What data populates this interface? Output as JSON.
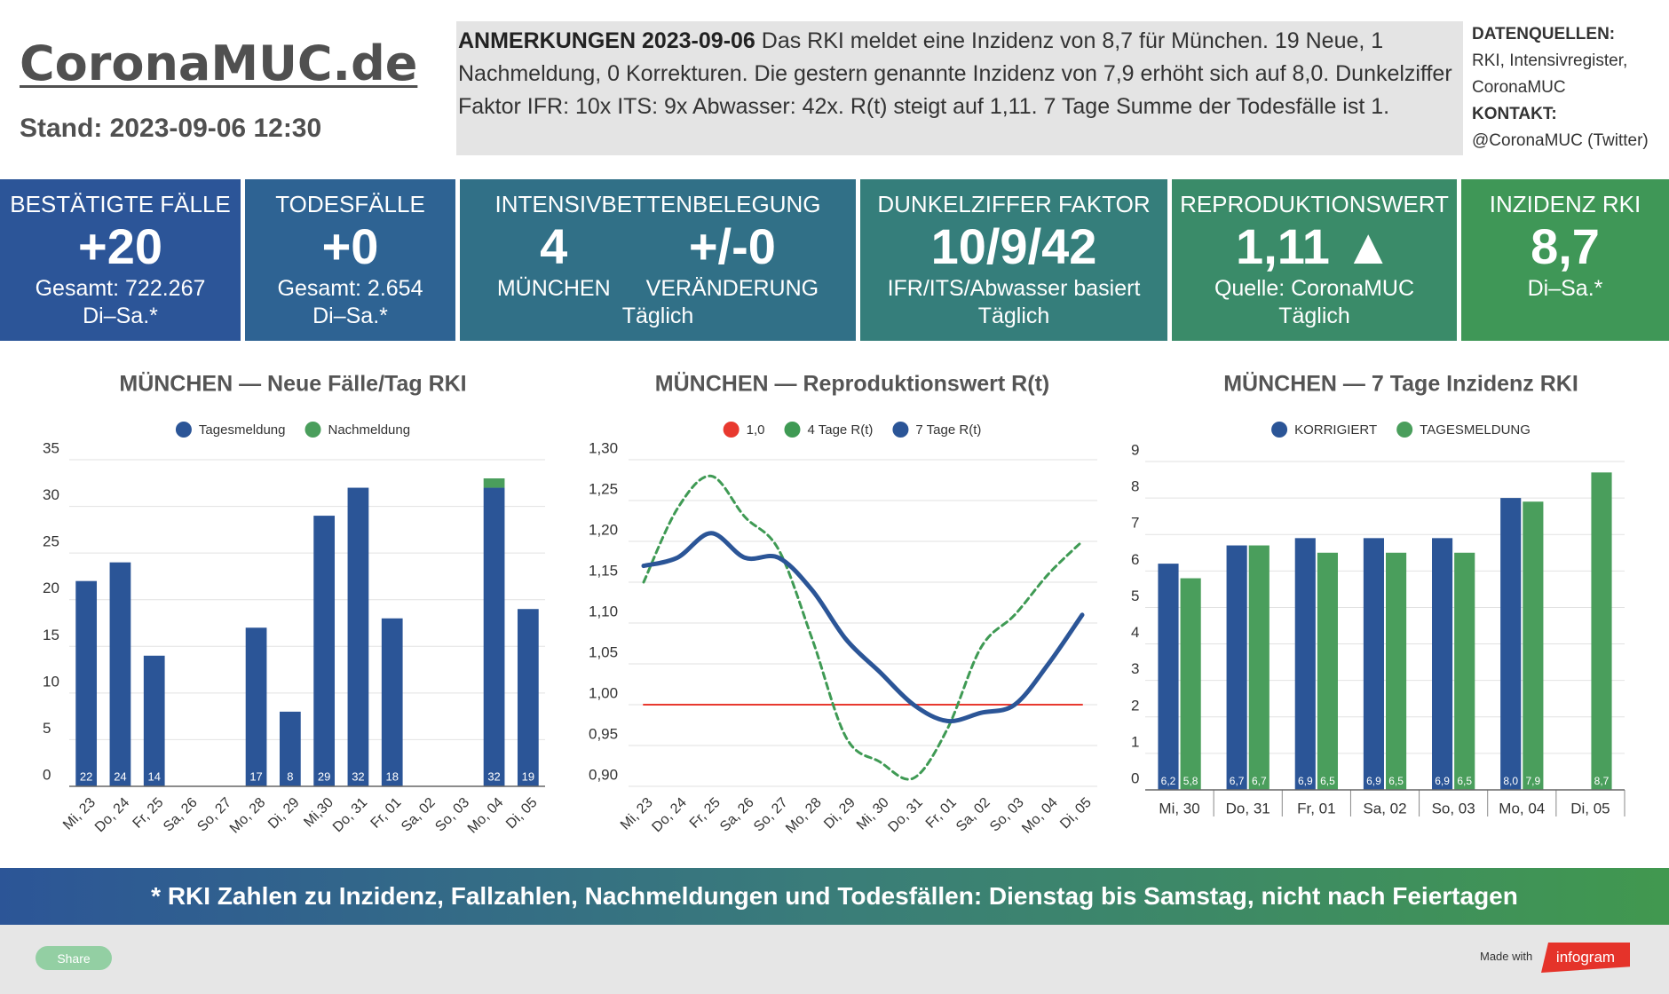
{
  "header": {
    "site_title": "CoronaMUC.de",
    "stand": "Stand: 2023-09-06 12:30",
    "notes_title": "ANMERKUNGEN 2023-09-06",
    "notes_text": "Das RKI meldet eine Inzidenz von 8,7 für München. 19 Neue, 1 Nachmeldung, 0 Korrekturen. Die gestern genannte Inzidenz von 7,9 erhöht sich auf 8,0. Dunkelziffer Faktor IFR: 10x ITS: 9x Abwasser: 42x. R(t) steigt auf 1,11. 7 Tage Summe der Todesfälle ist 1.",
    "sources_label": "DATENQUELLEN:",
    "sources": "RKI, Intensivregister, CoronaMUC",
    "contact_label": "KONTAKT:",
    "contact": "@CoronaMUC (Twitter)"
  },
  "kpis": [
    {
      "title": "BESTÄTIGTE FÄLLE",
      "value": "+20",
      "lines": [
        "Gesamt: 722.267",
        "Di–Sa.*"
      ]
    },
    {
      "title": "TODESFÄLLE",
      "value": "+0",
      "lines": [
        "Gesamt: 2.654",
        "Di–Sa.*"
      ]
    },
    {
      "title": "INTENSIVBETTENBELEGUNG",
      "figures": [
        {
          "value": "4",
          "label": "MÜNCHEN"
        },
        {
          "value": "+/-0",
          "label": "VERÄNDERUNG"
        }
      ],
      "lines": [
        "Täglich"
      ]
    },
    {
      "title": "DUNKELZIFFER FAKTOR",
      "value": "10/9/42",
      "lines": [
        "IFR/ITS/Abwasser basiert",
        "Täglich"
      ]
    },
    {
      "title": "REPRODUKTIONSWERT",
      "value": "1,11 ▲",
      "lines": [
        "Quelle: CoronaMUC",
        "Täglich"
      ]
    },
    {
      "title": "INZIDENZ RKI",
      "value": "8,7",
      "lines": [
        "Di–Sa.*"
      ]
    }
  ],
  "chart_data": [
    {
      "type": "bar",
      "stacked": true,
      "title": "MÜNCHEN — Neue Fälle/Tag RKI",
      "categories": [
        "Mi, 23",
        "Do, 24",
        "Fr, 25",
        "Sa, 26",
        "So, 27",
        "Mo, 28",
        "Di, 29",
        "Mi,30",
        "Do, 31",
        "Fr, 01",
        "Sa, 02",
        "So, 03",
        "Mo, 04",
        "Di, 05"
      ],
      "series": [
        {
          "name": "Tagesmeldung",
          "color": "#2b5597",
          "labels": true,
          "values": [
            22,
            24,
            14,
            null,
            null,
            17,
            8,
            29,
            32,
            18,
            null,
            null,
            32,
            19
          ]
        },
        {
          "name": "Nachmeldung",
          "color": "#4a9e5c",
          "labels": false,
          "values": [
            null,
            null,
            null,
            null,
            null,
            null,
            null,
            null,
            null,
            null,
            null,
            null,
            1,
            null
          ]
        }
      ],
      "ylim": [
        0,
        35
      ],
      "yticks": [
        0,
        5,
        10,
        15,
        20,
        25,
        30,
        35
      ],
      "grid": true
    },
    {
      "type": "line",
      "title": "MÜNCHEN — Reproduktionswert R(t)",
      "categories": [
        "Mi, 23",
        "Do, 24",
        "Fr, 25",
        "Sa, 26",
        "So, 27",
        "Mo, 28",
        "Di, 29",
        "Mi, 30",
        "Do, 31",
        "Fr, 01",
        "Sa, 02",
        "So, 03",
        "Mo, 04",
        "Di, 05"
      ],
      "series": [
        {
          "name": "1,0",
          "color": "#e8392f",
          "style": "solid",
          "width": 2,
          "values": [
            1.0,
            1.0,
            1.0,
            1.0,
            1.0,
            1.0,
            1.0,
            1.0,
            1.0,
            1.0,
            1.0,
            1.0,
            1.0,
            1.0
          ]
        },
        {
          "name": "4 Tage R(t)",
          "color": "#3f9a54",
          "style": "dashed",
          "width": 3,
          "values": [
            1.15,
            1.24,
            1.28,
            1.23,
            1.19,
            1.08,
            0.96,
            0.93,
            0.91,
            0.97,
            1.07,
            1.11,
            1.16,
            1.2
          ]
        },
        {
          "name": "7 Tage R(t)",
          "color": "#2b5597",
          "style": "solid",
          "width": 5,
          "values": [
            1.17,
            1.18,
            1.21,
            1.18,
            1.18,
            1.14,
            1.08,
            1.04,
            1.0,
            0.98,
            0.99,
            1.0,
            1.05,
            1.11
          ]
        }
      ],
      "ylim": [
        0.9,
        1.3
      ],
      "yticks": [
        {
          "value": 0.9,
          "label": "0,90"
        },
        {
          "value": 0.95,
          "label": "0,95"
        },
        {
          "value": 1.0,
          "label": "1,00"
        },
        {
          "value": 1.05,
          "label": "1,05"
        },
        {
          "value": 1.1,
          "label": "1,10"
        },
        {
          "value": 1.15,
          "label": "1,15"
        },
        {
          "value": 1.2,
          "label": "1,20"
        },
        {
          "value": 1.25,
          "label": "1,25"
        },
        {
          "value": 1.3,
          "label": "1,30"
        }
      ],
      "grid": true
    },
    {
      "type": "bar",
      "stacked": false,
      "title": "MÜNCHEN — 7 Tage Inzidenz RKI",
      "categories": [
        "Mi, 30",
        "Do, 31",
        "Fr, 01",
        "Sa, 02",
        "So, 03",
        "Mo, 04",
        "Di, 05"
      ],
      "series": [
        {
          "name": "KORRIGIERT",
          "color": "#2b5597",
          "labels": true,
          "values": [
            6.2,
            6.7,
            6.9,
            6.9,
            6.9,
            8.0,
            null
          ],
          "value_labels": [
            "6,2",
            "6,7",
            "6,9",
            "6,9",
            "6,9",
            "8,0",
            null
          ]
        },
        {
          "name": "TAGESMELDUNG",
          "color": "#4a9e5c",
          "labels": true,
          "values": [
            5.8,
            6.7,
            6.5,
            6.5,
            6.5,
            7.9,
            8.7
          ],
          "value_labels": [
            "5,8",
            "6,7",
            "6,5",
            "6,5",
            "6,5",
            "7,9",
            "8,7"
          ]
        }
      ],
      "ylim": [
        0,
        9
      ],
      "yticks": [
        0,
        1,
        2,
        3,
        4,
        5,
        6,
        7,
        8,
        9
      ],
      "grid": true
    }
  ],
  "footer": {
    "note": "* RKI Zahlen zu Inzidenz, Fallzahlen, Nachmeldungen und Todesfällen: Dienstag bis Samstag, nicht nach Feiertagen",
    "share": "Share",
    "made_with": "Made with",
    "brand": "infogram"
  }
}
